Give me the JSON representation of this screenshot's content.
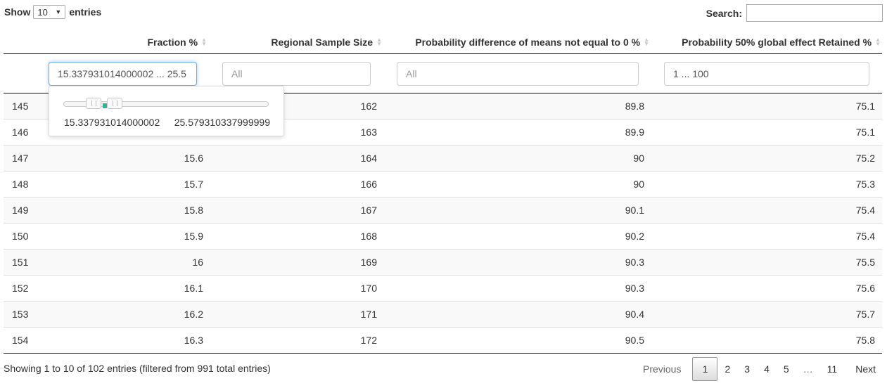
{
  "length_menu": {
    "prefix": "Show",
    "selected": "10",
    "suffix": "entries"
  },
  "search": {
    "label": "Search:",
    "value": ""
  },
  "columns": [
    {
      "label": ""
    },
    {
      "label": "Fraction %"
    },
    {
      "label": "Regional Sample Size"
    },
    {
      "label": "Probability difference of means not equal to 0 %"
    },
    {
      "label": "Probability 50% global effect Retained %"
    }
  ],
  "filters": {
    "fraction": {
      "value": "15.337931014000002 ... 25.5",
      "placeholder": ""
    },
    "sample_size": {
      "value": "",
      "placeholder": "All"
    },
    "prob_diff": {
      "value": "",
      "placeholder": "All"
    },
    "prob_retained": {
      "value": "1 ... 100",
      "placeholder": ""
    }
  },
  "range_popup": {
    "min": "15.337931014000002",
    "max": "25.579310337999999"
  },
  "rows": [
    [
      "145",
      "",
      "162",
      "89.8",
      "75.1"
    ],
    [
      "146",
      "",
      "163",
      "89.9",
      "75.1"
    ],
    [
      "147",
      "15.6",
      "164",
      "90",
      "75.2"
    ],
    [
      "148",
      "15.7",
      "166",
      "90",
      "75.3"
    ],
    [
      "149",
      "15.8",
      "167",
      "90.1",
      "75.4"
    ],
    [
      "150",
      "15.9",
      "168",
      "90.2",
      "75.4"
    ],
    [
      "151",
      "16",
      "169",
      "90.3",
      "75.5"
    ],
    [
      "152",
      "16.1",
      "170",
      "90.3",
      "75.6"
    ],
    [
      "153",
      "16.2",
      "171",
      "90.4",
      "75.7"
    ],
    [
      "154",
      "16.3",
      "172",
      "90.5",
      "75.8"
    ]
  ],
  "info": "Showing 1 to 10 of 102 entries (filtered from 991 total entries)",
  "pagination": {
    "previous": "Previous",
    "pages": [
      "1",
      "2",
      "3",
      "4",
      "5"
    ],
    "ellipsis": "…",
    "last": "11",
    "next": "Next"
  }
}
